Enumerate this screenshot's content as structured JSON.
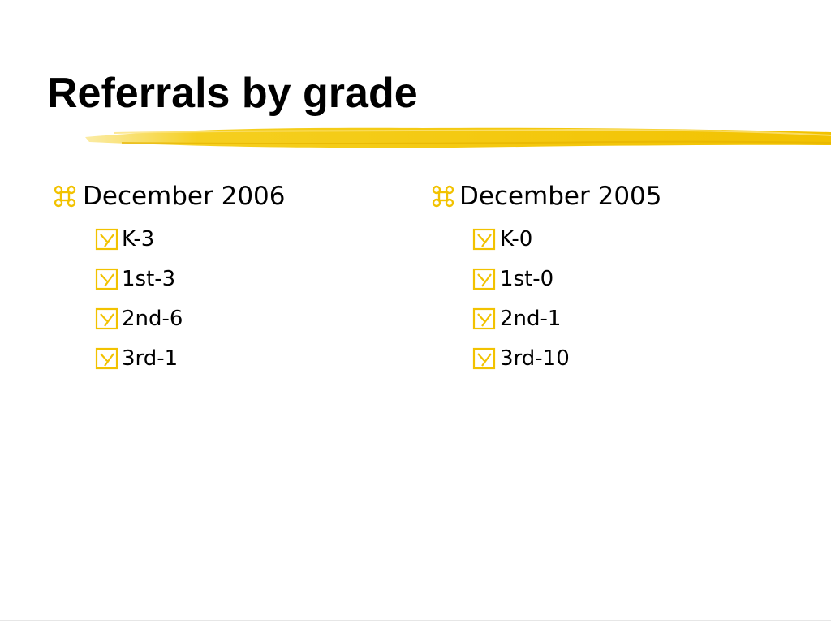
{
  "title": "Referrals by grade",
  "columns": [
    {
      "heading": "December 2006",
      "items": [
        "K-3",
        "1st-3",
        "2nd-6",
        "3rd-1"
      ]
    },
    {
      "heading": "December 2005",
      "items": [
        "K-0",
        "1st-0",
        "2nd-1",
        "3rd-10"
      ]
    }
  ]
}
